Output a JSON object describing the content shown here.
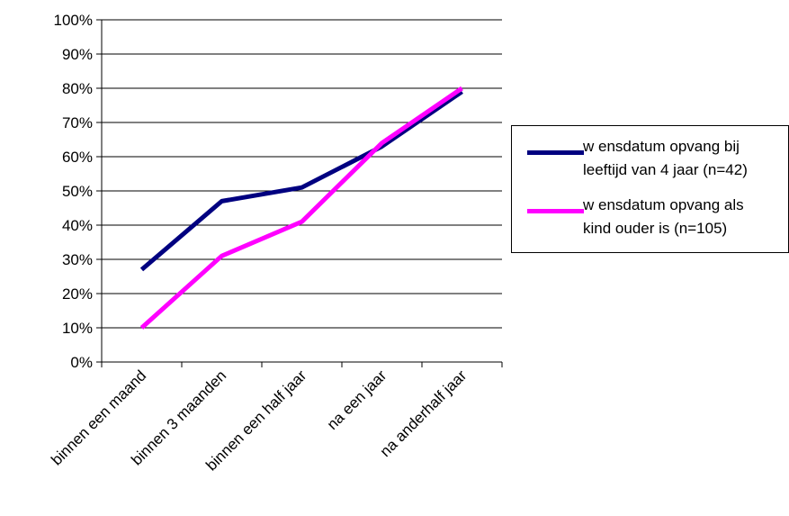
{
  "chart_data": {
    "type": "line",
    "categories": [
      "binnen een maand",
      "binnen 3 maanden",
      "binnen een half jaar",
      "na een jaar",
      "na anderhalf jaar"
    ],
    "x_tick_labels": [
      "binnen een maand",
      "binnen 3 maanden",
      "binnen een half jaar",
      "na een jaar",
      "na anderhalf jaar"
    ],
    "y_tick_labels": [
      "0%",
      "10%",
      "20%",
      "30%",
      "40%",
      "50%",
      "60%",
      "70%",
      "80%",
      "90%",
      "100%"
    ],
    "ylim": [
      0,
      100
    ],
    "y_unit": "%",
    "grid": true,
    "legend_position": "right",
    "title": "",
    "xlabel": "",
    "ylabel": "",
    "series": [
      {
        "name": "wensdatum opvang bij leeftijd van 4 jaar (n=42)",
        "legend_text": "w ensdatum opvang bij\nleeftijd van 4 jaar (n=42)",
        "color": "#000080",
        "values": [
          27,
          47,
          51,
          63,
          79
        ]
      },
      {
        "name": "wensdatum opvang als kind ouder is (n=105)",
        "legend_text": "w ensdatum opvang als\nkind ouder is (n=105)",
        "color": "#FF00FF",
        "values": [
          10,
          31,
          41,
          64,
          80
        ]
      }
    ]
  }
}
